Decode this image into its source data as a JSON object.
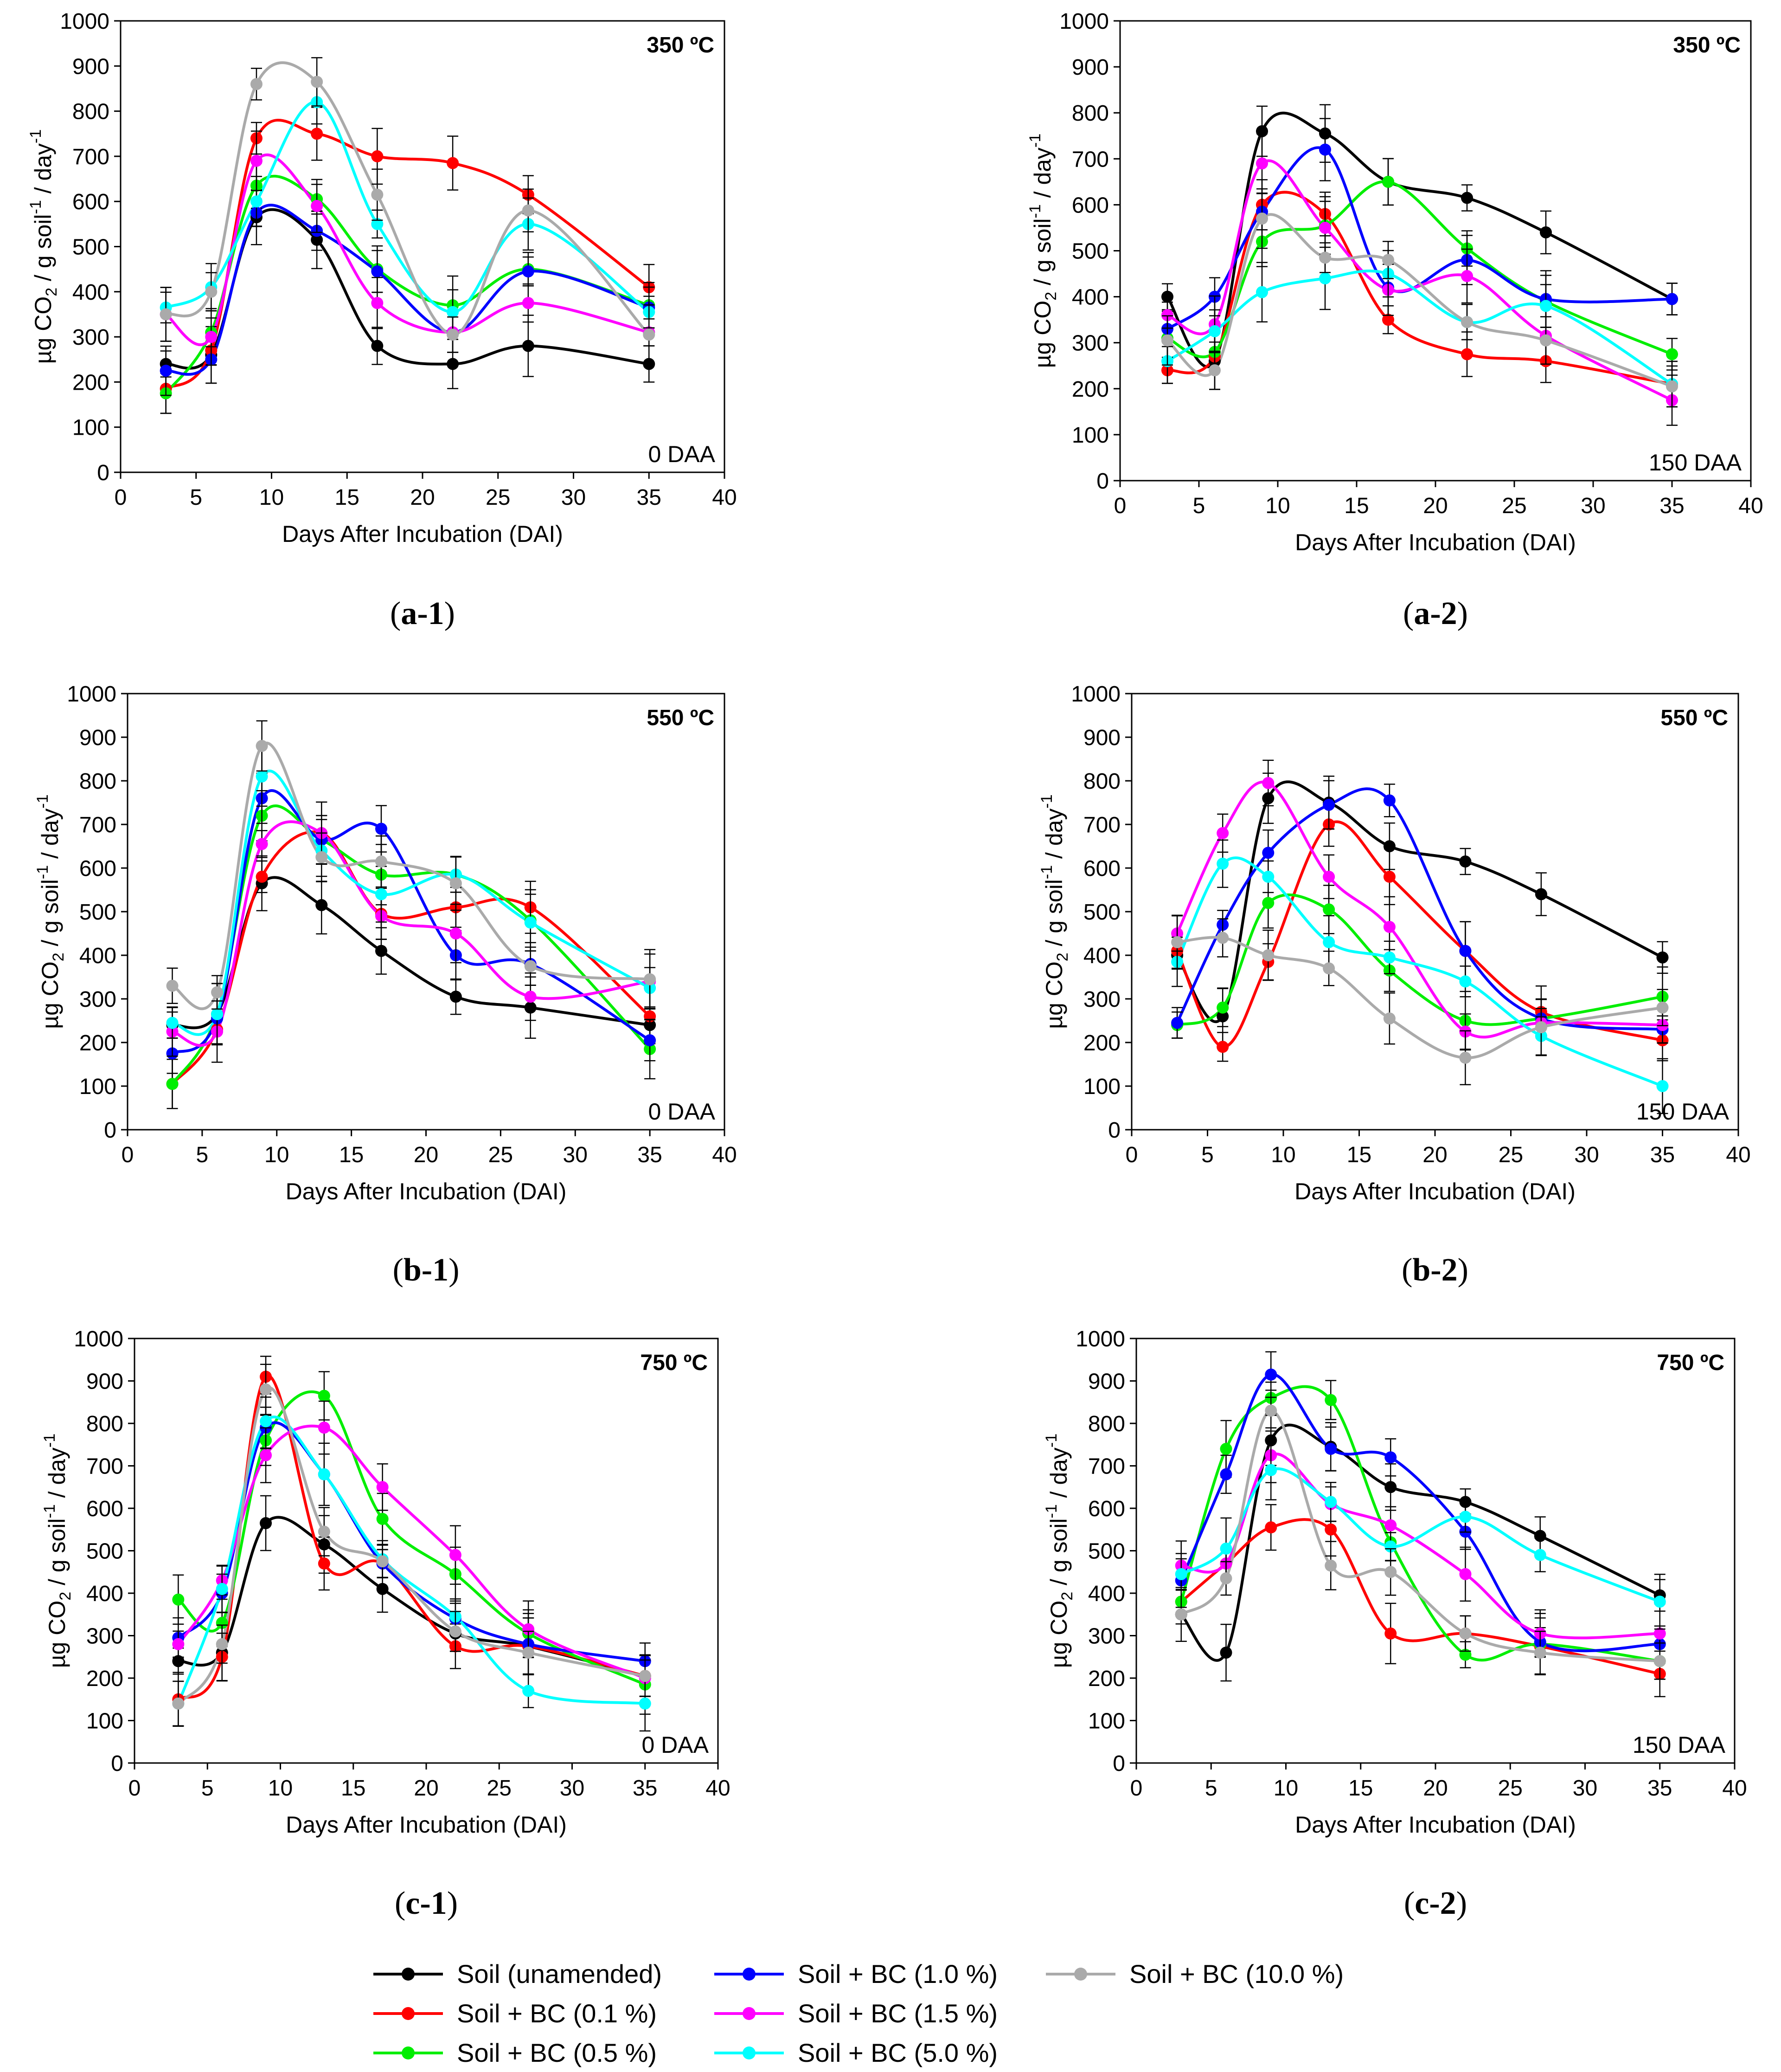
{
  "legend": {
    "entries": [
      {
        "key": "soil",
        "label": "Soil (unamended)",
        "color": "#000000"
      },
      {
        "key": "bc01",
        "label": "Soil + BC (0.1 %)",
        "color": "#ff0000"
      },
      {
        "key": "bc05",
        "label": "Soil + BC (0.5 %)",
        "color": "#00ee00"
      },
      {
        "key": "bc10",
        "label": "Soil + BC (1.0 %)",
        "color": "#0000ff"
      },
      {
        "key": "bc15",
        "label": "Soil + BC (1.5 %)",
        "color": "#ff00ff"
      },
      {
        "key": "bc50",
        "label": "Soil + BC (5.0 %)",
        "color": "#00ffff"
      },
      {
        "key": "bc100",
        "label": "Soil + BC (10.0 %)",
        "color": "#aaaaaa"
      }
    ]
  },
  "chart_data": [
    {
      "type": "line",
      "id": "a1",
      "caption_letter": "a",
      "caption_suffix": "-1",
      "temperature": "350 ºC",
      "daa": "0 DAA",
      "xlabel": "Days After Incubation (DAI)",
      "ylabel": "µg CO2 / g soil-1 / day-1",
      "xlim": [
        0,
        40
      ],
      "ylim": [
        0,
        1000
      ],
      "x_ticks": [
        "0",
        "5",
        "10",
        "15",
        "20",
        "25",
        "30",
        "35",
        "40"
      ],
      "y_ticks": [
        "0",
        "100",
        "200",
        "300",
        "400",
        "500",
        "600",
        "700",
        "800",
        "900",
        "1000"
      ],
      "x": [
        3,
        6,
        9,
        13,
        17,
        22,
        27,
        35
      ],
      "series": [
        {
          "key": "soil",
          "values": [
            240,
            260,
            565,
            515,
            280,
            240,
            280,
            240
          ]
        },
        {
          "key": "bc01",
          "values": [
            185,
            270,
            740,
            750,
            700,
            685,
            615,
            410
          ]
        },
        {
          "key": "bc05",
          "values": [
            175,
            310,
            635,
            605,
            450,
            370,
            450,
            370
          ]
        },
        {
          "key": "bc10",
          "values": [
            225,
            250,
            575,
            535,
            445,
            310,
            445,
            365
          ]
        },
        {
          "key": "bc15",
          "values": [
            350,
            300,
            690,
            590,
            375,
            310,
            375,
            310
          ]
        },
        {
          "key": "bc50",
          "values": [
            365,
            410,
            600,
            820,
            550,
            355,
            550,
            355
          ]
        },
        {
          "key": "bc100",
          "values": [
            350,
            400,
            860,
            865,
            615,
            305,
            580,
            305
          ]
        }
      ]
    },
    {
      "type": "line",
      "id": "a2",
      "caption_letter": "a",
      "caption_suffix": "-2",
      "temperature": "350 ºC",
      "daa": "150 DAA",
      "xlabel": "Days After Incubation (DAI)",
      "ylabel": "µg CO2 / g soil-1 / day-1",
      "xlim": [
        0,
        40
      ],
      "ylim": [
        0,
        1000
      ],
      "x_ticks": [
        "0",
        "5",
        "10",
        "15",
        "20",
        "25",
        "30",
        "35",
        "40"
      ],
      "y_ticks": [
        "0",
        "100",
        "200",
        "300",
        "400",
        "500",
        "600",
        "700",
        "800",
        "900",
        "1000"
      ],
      "x": [
        3,
        6,
        9,
        13,
        17,
        22,
        27,
        35
      ],
      "series": [
        {
          "key": "soil",
          "values": [
            400,
            260,
            760,
            755,
            650,
            615,
            540,
            395
          ]
        },
        {
          "key": "bc01",
          "values": [
            240,
            270,
            600,
            580,
            350,
            275,
            260,
            210
          ]
        },
        {
          "key": "bc05",
          "values": [
            310,
            280,
            520,
            555,
            650,
            505,
            390,
            275
          ]
        },
        {
          "key": "bc10",
          "values": [
            330,
            400,
            585,
            720,
            420,
            480,
            395,
            395
          ]
        },
        {
          "key": "bc15",
          "values": [
            360,
            340,
            690,
            550,
            415,
            445,
            315,
            175
          ]
        },
        {
          "key": "bc50",
          "values": [
            260,
            325,
            410,
            440,
            450,
            345,
            380,
            210
          ]
        },
        {
          "key": "bc100",
          "values": [
            305,
            240,
            570,
            485,
            480,
            345,
            305,
            205
          ]
        }
      ]
    },
    {
      "type": "line",
      "id": "b1",
      "caption_letter": "b",
      "caption_suffix": "-1",
      "temperature": "550 ºC",
      "daa": "0 DAA",
      "xlabel": "Days After Incubation (DAI)",
      "ylabel": "µg CO2 / g soil-1 / day-1",
      "xlim": [
        0,
        40
      ],
      "ylim": [
        0,
        1000
      ],
      "x_ticks": [
        "0",
        "5",
        "10",
        "15",
        "20",
        "25",
        "30",
        "35",
        "40"
      ],
      "y_ticks": [
        "0",
        "100",
        "200",
        "300",
        "400",
        "500",
        "600",
        "700",
        "800",
        "900",
        "1000"
      ],
      "x": [
        3,
        6,
        9,
        13,
        17,
        22,
        27,
        35
      ],
      "series": [
        {
          "key": "soil",
          "values": [
            240,
            265,
            565,
            515,
            410,
            305,
            280,
            240
          ]
        },
        {
          "key": "bc01",
          "values": [
            105,
            230,
            580,
            680,
            495,
            510,
            510,
            260
          ]
        },
        {
          "key": "bc05",
          "values": [
            105,
            265,
            720,
            665,
            585,
            585,
            480,
            185
          ]
        },
        {
          "key": "bc10",
          "values": [
            175,
            255,
            760,
            665,
            690,
            400,
            380,
            205
          ]
        },
        {
          "key": "bc15",
          "values": [
            225,
            225,
            655,
            680,
            490,
            450,
            305,
            340
          ]
        },
        {
          "key": "bc50",
          "values": [
            245,
            265,
            810,
            640,
            540,
            585,
            475,
            325
          ]
        },
        {
          "key": "bc100",
          "values": [
            330,
            315,
            880,
            625,
            615,
            565,
            375,
            345
          ]
        }
      ]
    },
    {
      "type": "line",
      "id": "b2",
      "caption_letter": "b",
      "caption_suffix": "-2",
      "temperature": "550 ºC",
      "daa": "150 DAA",
      "xlabel": "Days After Incubation (DAI)",
      "ylabel": "µg CO2 / g soil-1 / day-1",
      "xlim": [
        0,
        40
      ],
      "ylim": [
        0,
        1000
      ],
      "x_ticks": [
        "0",
        "5",
        "10",
        "15",
        "20",
        "25",
        "30",
        "35",
        "40"
      ],
      "y_ticks": [
        "0",
        "100",
        "200",
        "300",
        "400",
        "500",
        "600",
        "700",
        "800",
        "900",
        "1000"
      ],
      "x": [
        3,
        6,
        9,
        13,
        17,
        22,
        27,
        35
      ],
      "series": [
        {
          "key": "soil",
          "values": [
            400,
            260,
            760,
            750,
            650,
            615,
            540,
            395
          ]
        },
        {
          "key": "bc01",
          "values": [
            410,
            190,
            385,
            700,
            580,
            410,
            270,
            205
          ]
        },
        {
          "key": "bc05",
          "values": [
            240,
            280,
            520,
            505,
            365,
            250,
            255,
            305
          ]
        },
        {
          "key": "bc10",
          "values": [
            245,
            470,
            635,
            745,
            755,
            410,
            255,
            230
          ]
        },
        {
          "key": "bc15",
          "values": [
            450,
            680,
            795,
            580,
            465,
            225,
            245,
            240
          ]
        },
        {
          "key": "bc50",
          "values": [
            385,
            610,
            580,
            430,
            395,
            340,
            215,
            100
          ]
        },
        {
          "key": "bc100",
          "values": [
            430,
            440,
            400,
            370,
            255,
            165,
            235,
            280
          ]
        }
      ]
    },
    {
      "type": "line",
      "id": "c1",
      "caption_letter": "c",
      "caption_suffix": "-1",
      "temperature": "750 ºC",
      "daa": "0 DAA",
      "xlabel": "Days After Incubation (DAI)",
      "ylabel": "µg CO2 / g soil-1 / day-1",
      "xlim": [
        0,
        40
      ],
      "ylim": [
        0,
        1000
      ],
      "x_ticks": [
        "0",
        "5",
        "10",
        "15",
        "20",
        "25",
        "30",
        "35",
        "40"
      ],
      "y_ticks": [
        "0",
        "100",
        "200",
        "300",
        "400",
        "500",
        "600",
        "700",
        "800",
        "900",
        "1000"
      ],
      "x": [
        3,
        6,
        9,
        13,
        17,
        22,
        27,
        35
      ],
      "series": [
        {
          "key": "soil",
          "values": [
            240,
            260,
            565,
            515,
            410,
            305,
            275,
            205
          ]
        },
        {
          "key": "bc01",
          "values": [
            150,
            250,
            910,
            470,
            470,
            275,
            275,
            205
          ]
        },
        {
          "key": "bc05",
          "values": [
            385,
            330,
            760,
            865,
            575,
            445,
            305,
            185
          ]
        },
        {
          "key": "bc10",
          "values": [
            295,
            400,
            790,
            680,
            470,
            340,
            280,
            240
          ]
        },
        {
          "key": "bc15",
          "values": [
            280,
            430,
            725,
            790,
            650,
            490,
            315,
            200
          ]
        },
        {
          "key": "bc50",
          "values": [
            140,
            410,
            805,
            680,
            480,
            345,
            170,
            140
          ]
        },
        {
          "key": "bc100",
          "values": [
            140,
            280,
            880,
            545,
            475,
            310,
            260,
            205
          ]
        }
      ]
    },
    {
      "type": "line",
      "id": "c2",
      "caption_letter": "c",
      "caption_suffix": "-2",
      "temperature": "750 ºC",
      "daa": "150 DAA",
      "xlabel": "Days After Incubation (DAI)",
      "ylabel": "µg CO2 / g soil-1 / day-1",
      "xlim": [
        0,
        40
      ],
      "ylim": [
        0,
        1000
      ],
      "x_ticks": [
        "0",
        "5",
        "10",
        "15",
        "20",
        "25",
        "30",
        "35",
        "40"
      ],
      "y_ticks": [
        "0",
        "100",
        "200",
        "300",
        "400",
        "500",
        "600",
        "700",
        "800",
        "900",
        "1000"
      ],
      "x": [
        3,
        6,
        9,
        13,
        17,
        22,
        27,
        35
      ],
      "series": [
        {
          "key": "soil",
          "values": [
            350,
            260,
            760,
            745,
            650,
            615,
            535,
            395
          ]
        },
        {
          "key": "bc01",
          "values": [
            380,
            470,
            555,
            550,
            305,
            305,
            275,
            210
          ]
        },
        {
          "key": "bc05",
          "values": [
            380,
            740,
            860,
            855,
            520,
            255,
            280,
            240
          ]
        },
        {
          "key": "bc10",
          "values": [
            430,
            680,
            915,
            740,
            720,
            545,
            285,
            280
          ]
        },
        {
          "key": "bc15",
          "values": [
            465,
            470,
            725,
            610,
            560,
            445,
            305,
            305
          ]
        },
        {
          "key": "bc50",
          "values": [
            445,
            505,
            690,
            615,
            510,
            580,
            490,
            380
          ]
        },
        {
          "key": "bc100",
          "values": [
            350,
            435,
            830,
            465,
            450,
            305,
            260,
            240
          ]
        }
      ]
    }
  ]
}
